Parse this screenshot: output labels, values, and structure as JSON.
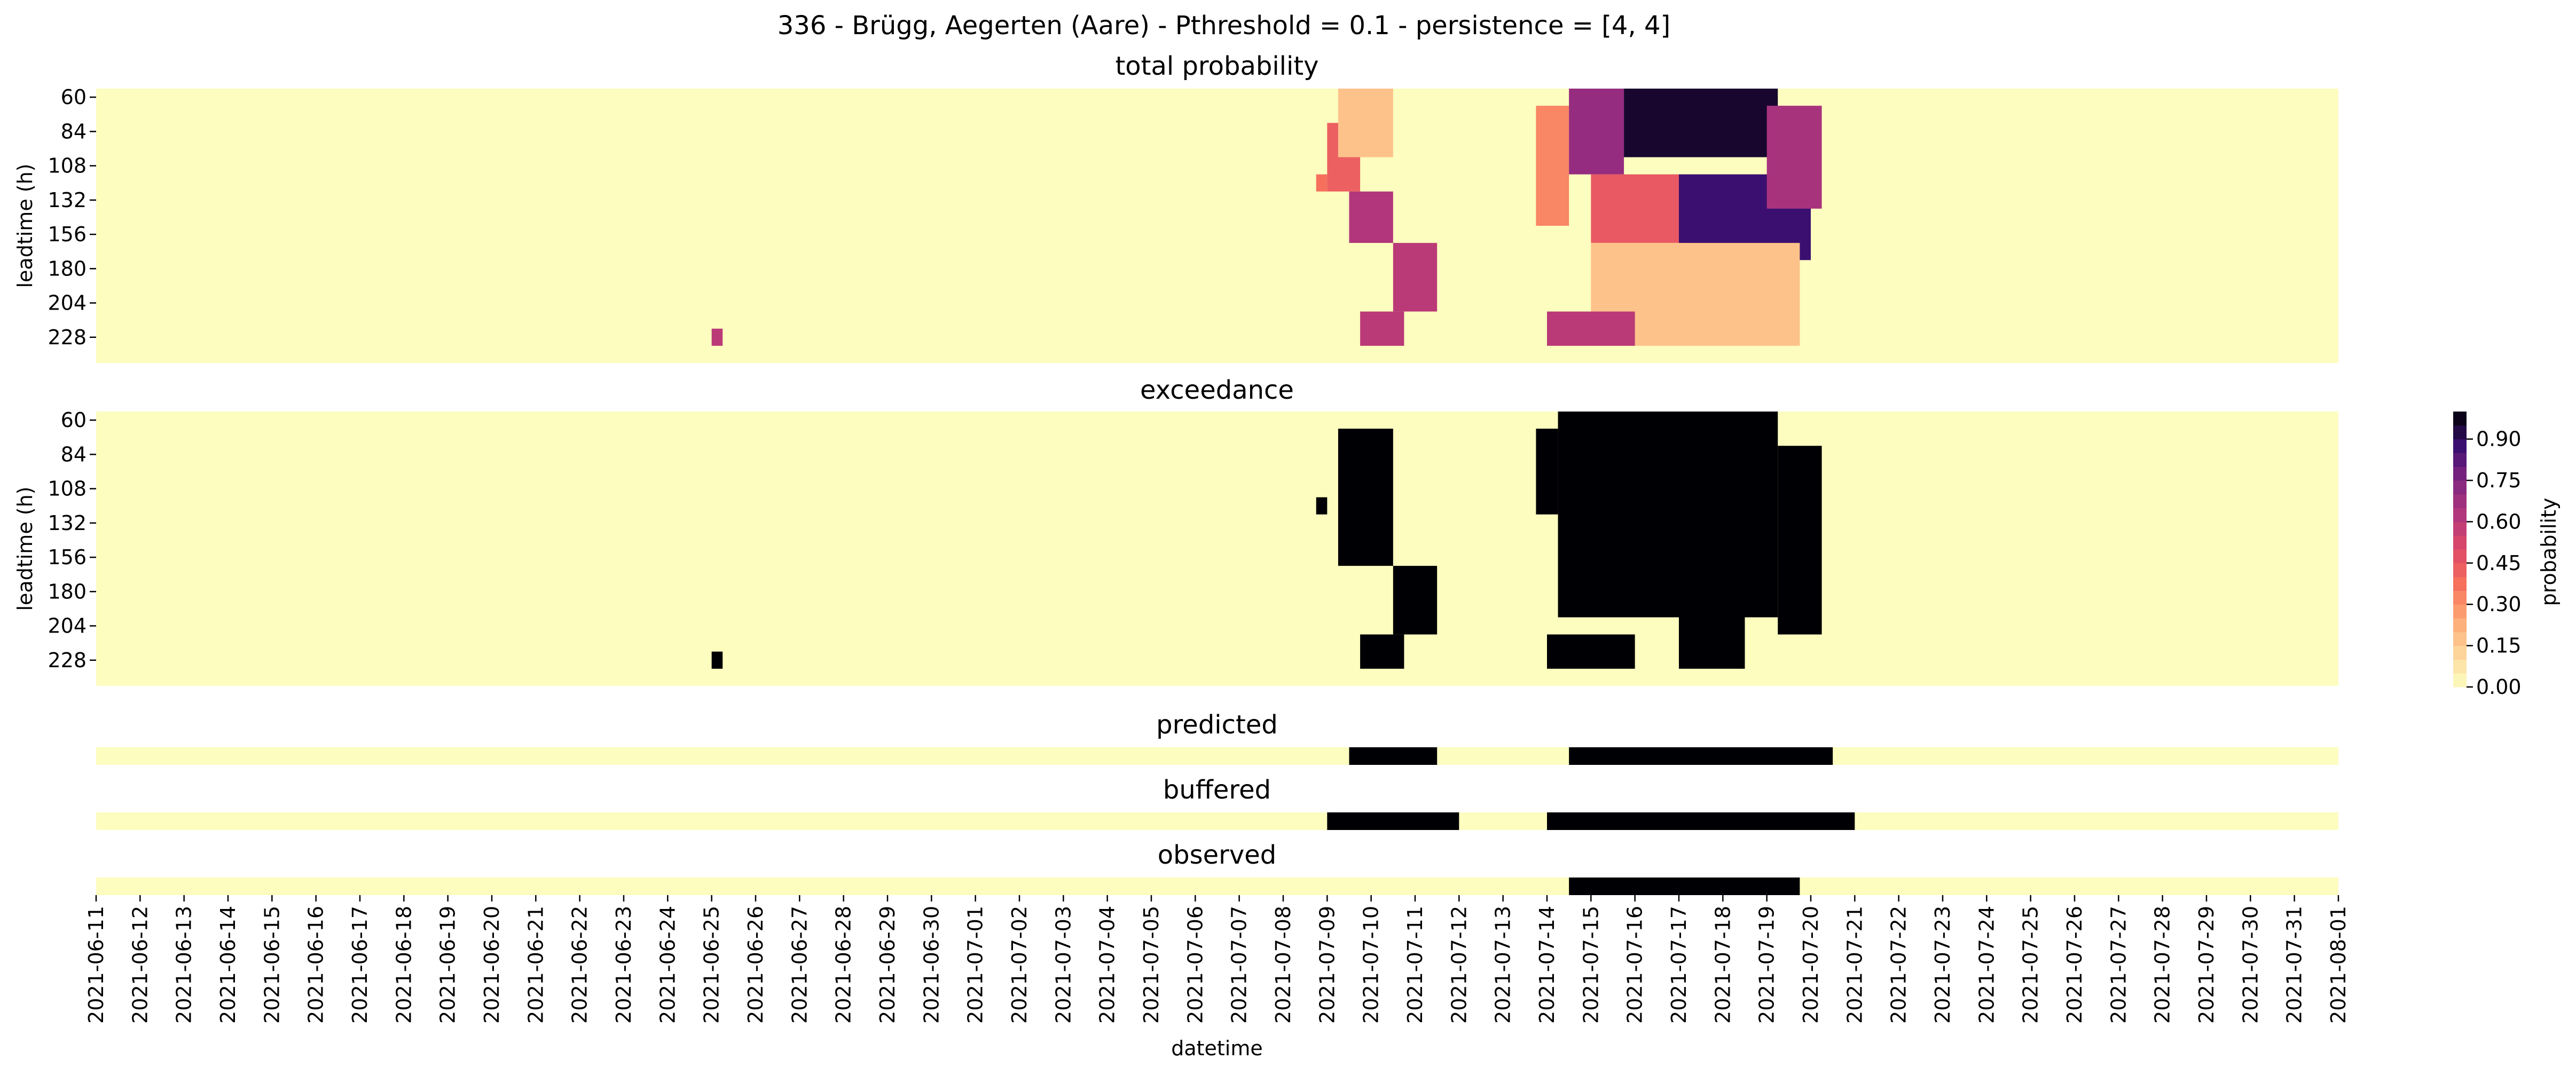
{
  "figure_title": "336 - Brügg, Aegerten (Aare) - Pthreshold = 0.1 - persistence = [4, 4]",
  "xlabel": "datetime",
  "colorbar": {
    "label": "probability",
    "ticks": [
      "0.00",
      "0.15",
      "0.30",
      "0.45",
      "0.60",
      "0.75",
      "0.90"
    ],
    "colormap": "magma_r",
    "levels": 20,
    "colors": {
      "low": "#fcfdbf",
      "mid": "#de4968",
      "high": "#000004"
    }
  },
  "chart_data": [
    {
      "type": "heatmap",
      "title": "total probability",
      "ylabel": "leadtime (h)",
      "ytick_labels": [
        "60",
        "84",
        "108",
        "132",
        "156",
        "180",
        "204",
        "228"
      ],
      "leadtime_h": [
        60,
        72,
        84,
        96,
        108,
        120,
        132,
        144,
        156,
        168,
        180,
        192,
        204,
        216,
        228,
        240
      ],
      "cell_hours": 6,
      "value_range": [
        0,
        1
      ],
      "regions": [
        {
          "start": "2021-06-25T00:00",
          "end": "2021-06-25T06:00",
          "leadtime_h": [
            228,
            240
          ],
          "p": [
            0.55,
            0.65
          ]
        },
        {
          "start": "2021-07-08T18:00",
          "end": "2021-07-09T00:00",
          "leadtime_h": [
            120,
            132
          ],
          "p": [
            0.3,
            0.45
          ]
        },
        {
          "start": "2021-07-09T00:00",
          "end": "2021-07-09T18:00",
          "leadtime_h": [
            84,
            132
          ],
          "p": [
            0.3,
            0.55
          ]
        },
        {
          "start": "2021-07-09T06:00",
          "end": "2021-07-10T12:00",
          "leadtime_h": [
            60,
            108
          ],
          "p": [
            0.05,
            0.3
          ]
        },
        {
          "start": "2021-07-09T12:00",
          "end": "2021-07-10T12:00",
          "leadtime_h": [
            132,
            168
          ],
          "p": [
            0.45,
            0.8
          ]
        },
        {
          "start": "2021-07-10T12:00",
          "end": "2021-07-11T12:00",
          "leadtime_h": [
            168,
            216
          ],
          "p": [
            0.55,
            0.65
          ]
        },
        {
          "start": "2021-07-09T18:00",
          "end": "2021-07-10T18:00",
          "leadtime_h": [
            216,
            240
          ],
          "p": [
            0.55,
            0.65
          ]
        },
        {
          "start": "2021-07-13T18:00",
          "end": "2021-07-14T12:00",
          "leadtime_h": [
            72,
            156
          ],
          "p": [
            0.2,
            0.45
          ]
        },
        {
          "start": "2021-07-14T12:00",
          "end": "2021-07-15T18:00",
          "leadtime_h": [
            60,
            120
          ],
          "p": [
            0.55,
            0.85
          ]
        },
        {
          "start": "2021-07-15T18:00",
          "end": "2021-07-19T06:00",
          "leadtime_h": [
            60,
            108
          ],
          "p": [
            0.9,
            1.0
          ]
        },
        {
          "start": "2021-07-15T00:00",
          "end": "2021-07-17T00:00",
          "leadtime_h": [
            120,
            168
          ],
          "p": [
            0.3,
            0.6
          ]
        },
        {
          "start": "2021-07-17T00:00",
          "end": "2021-07-20T00:00",
          "leadtime_h": [
            120,
            180
          ],
          "p": [
            0.75,
            1.0
          ]
        },
        {
          "start": "2021-07-19T00:00",
          "end": "2021-07-20T06:00",
          "leadtime_h": [
            72,
            144
          ],
          "p": [
            0.5,
            0.8
          ]
        },
        {
          "start": "2021-07-15T00:00",
          "end": "2021-07-19T18:00",
          "leadtime_h": [
            168,
            240
          ],
          "p": [
            0.05,
            0.3
          ]
        },
        {
          "start": "2021-07-14T00:00",
          "end": "2021-07-16T00:00",
          "leadtime_h": [
            216,
            240
          ],
          "p": [
            0.55,
            0.65
          ]
        }
      ]
    },
    {
      "type": "heatmap",
      "title": "exceedance",
      "ylabel": "leadtime (h)",
      "ytick_labels": [
        "60",
        "84",
        "108",
        "132",
        "156",
        "180",
        "204",
        "228"
      ],
      "leadtime_h": [
        60,
        72,
        84,
        96,
        108,
        120,
        132,
        144,
        156,
        168,
        180,
        192,
        204,
        216,
        228,
        240
      ],
      "cell_hours": 6,
      "values": "binary (0 or 1)",
      "regions": [
        {
          "start": "2021-06-25T00:00",
          "end": "2021-06-25T06:00",
          "leadtime_h": [
            228,
            240
          ]
        },
        {
          "start": "2021-07-08T18:00",
          "end": "2021-07-09T00:00",
          "leadtime_h": [
            120,
            132
          ]
        },
        {
          "start": "2021-07-09T06:00",
          "end": "2021-07-10T12:00",
          "leadtime_h": [
            72,
            168
          ]
        },
        {
          "start": "2021-07-10T12:00",
          "end": "2021-07-11T12:00",
          "leadtime_h": [
            168,
            216
          ]
        },
        {
          "start": "2021-07-09T18:00",
          "end": "2021-07-10T18:00",
          "leadtime_h": [
            216,
            240
          ]
        },
        {
          "start": "2021-07-13T18:00",
          "end": "2021-07-14T06:00",
          "leadtime_h": [
            72,
            132
          ]
        },
        {
          "start": "2021-07-14T06:00",
          "end": "2021-07-19T06:00",
          "leadtime_h": [
            60,
            204
          ]
        },
        {
          "start": "2021-07-19T06:00",
          "end": "2021-07-20T06:00",
          "leadtime_h": [
            84,
            216
          ]
        },
        {
          "start": "2021-07-14T00:00",
          "end": "2021-07-16T00:00",
          "leadtime_h": [
            216,
            240
          ]
        },
        {
          "start": "2021-07-17T00:00",
          "end": "2021-07-18T12:00",
          "leadtime_h": [
            204,
            240
          ]
        }
      ]
    },
    {
      "type": "heatmap",
      "title": "predicted",
      "values": "binary",
      "events": [
        {
          "start": "2021-07-09T12:00",
          "end": "2021-07-11T12:00"
        },
        {
          "start": "2021-07-14T12:00",
          "end": "2021-07-20T12:00"
        }
      ]
    },
    {
      "type": "heatmap",
      "title": "buffered",
      "values": "binary",
      "events": [
        {
          "start": "2021-07-09T00:00",
          "end": "2021-07-12T00:00"
        },
        {
          "start": "2021-07-14T00:00",
          "end": "2021-07-21T00:00"
        }
      ]
    },
    {
      "type": "heatmap",
      "title": "observed",
      "values": "binary",
      "events": [
        {
          "start": "2021-07-14T12:00",
          "end": "2021-07-19T18:00"
        }
      ]
    }
  ],
  "x_axis": {
    "start": "2021-06-11",
    "end": "2021-08-01",
    "tick_labels": [
      "2021-06-11",
      "2021-06-12",
      "2021-06-13",
      "2021-06-14",
      "2021-06-15",
      "2021-06-16",
      "2021-06-17",
      "2021-06-18",
      "2021-06-19",
      "2021-06-20",
      "2021-06-21",
      "2021-06-22",
      "2021-06-23",
      "2021-06-24",
      "2021-06-25",
      "2021-06-26",
      "2021-06-27",
      "2021-06-28",
      "2021-06-29",
      "2021-06-30",
      "2021-07-01",
      "2021-07-02",
      "2021-07-03",
      "2021-07-04",
      "2021-07-05",
      "2021-07-06",
      "2021-07-07",
      "2021-07-08",
      "2021-07-09",
      "2021-07-10",
      "2021-07-11",
      "2021-07-12",
      "2021-07-13",
      "2021-07-14",
      "2021-07-15",
      "2021-07-16",
      "2021-07-17",
      "2021-07-18",
      "2021-07-19",
      "2021-07-20",
      "2021-07-21",
      "2021-07-22",
      "2021-07-23",
      "2021-07-24",
      "2021-07-25",
      "2021-07-26",
      "2021-07-27",
      "2021-07-28",
      "2021-07-29",
      "2021-07-30",
      "2021-07-31",
      "2021-08-01"
    ]
  }
}
